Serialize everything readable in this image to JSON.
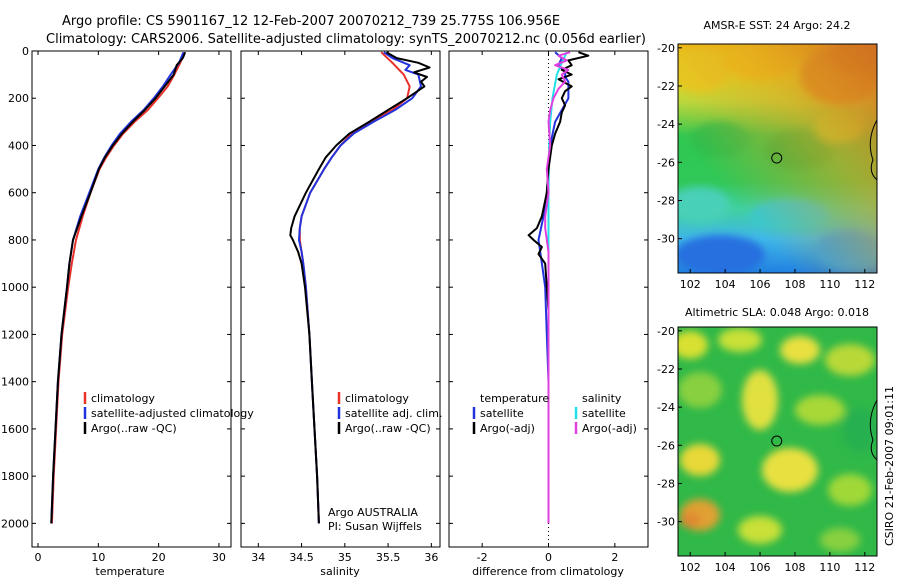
{
  "header": {
    "line1": "Argo profile: CS 5901167_12 12-Feb-2007 20070212_739 25.775S 106.956E",
    "line2": "Climatology: CARS2006. Satellite-adjusted climatology: synTS_20070212.nc (0.056d earlier)"
  },
  "credit": "CSIRO 21-Feb-2007 09:01:11",
  "colors": {
    "red": "#e8312b",
    "blue": "#2233dd",
    "black": "#000000",
    "cyan": "#22e0e8",
    "magenta": "#e040e0"
  },
  "chart_data": [
    {
      "type": "line",
      "xlabel": "temperature",
      "ylabel": "",
      "xlim": [
        -1,
        32
      ],
      "ylim": [
        0,
        2100
      ],
      "xticks": [
        "0",
        "10",
        "20",
        "30"
      ],
      "yticks": [
        "0",
        "200",
        "400",
        "600",
        "800",
        "1000",
        "1200",
        "1400",
        "1600",
        "1800",
        "2000"
      ],
      "legend": {
        "placement": "lower-right",
        "entries": [
          "climatology",
          "satellite-adjusted climatology",
          "Argo(..raw -QC)"
        ]
      },
      "series": [
        {
          "name": "climatology",
          "color": "red",
          "depth": [
            5,
            50,
            100,
            150,
            200,
            250,
            300,
            350,
            400,
            450,
            500,
            600,
            700,
            800,
            900,
            1000,
            1200,
            1400,
            1600,
            1800,
            2000
          ],
          "values": [
            24.3,
            23.6,
            22.6,
            21.5,
            19.9,
            18.2,
            16.0,
            14.1,
            12.6,
            11.3,
            10.2,
            8.7,
            7.4,
            6.3,
            5.6,
            5.0,
            4.0,
            3.4,
            3.0,
            2.6,
            2.3
          ]
        },
        {
          "name": "satellite-adjusted climatology",
          "color": "blue",
          "depth": [
            5,
            50,
            100,
            150,
            200,
            250,
            300,
            350,
            400,
            450,
            500,
            600,
            700,
            800,
            900,
            1000,
            1200,
            1400,
            1600,
            1800,
            2000
          ],
          "values": [
            24.1,
            23.4,
            22.0,
            20.7,
            19.2,
            17.5,
            15.4,
            13.6,
            12.2,
            11.0,
            10.0,
            8.5,
            7.0,
            5.8,
            5.2,
            4.8,
            3.9,
            3.3,
            2.9,
            2.5,
            2.2
          ]
        },
        {
          "name": "Argo(..raw -QC)",
          "color": "black",
          "depth": [
            5,
            30,
            60,
            100,
            150,
            200,
            250,
            300,
            350,
            400,
            450,
            500,
            600,
            700,
            800,
            850,
            900,
            1000,
            1200,
            1400,
            1600,
            1800,
            2000
          ],
          "values": [
            24.4,
            24.0,
            23.0,
            22.5,
            21.0,
            19.5,
            17.7,
            15.7,
            13.9,
            12.4,
            11.1,
            10.1,
            8.7,
            7.2,
            5.8,
            5.5,
            5.2,
            4.8,
            3.9,
            3.3,
            2.9,
            2.5,
            2.2
          ]
        }
      ]
    },
    {
      "type": "line",
      "xlabel": "salinity",
      "ylabel": "",
      "xlim": [
        33.8,
        36.1
      ],
      "ylim": [
        0,
        2100
      ],
      "xticks": [
        "34",
        "34.5",
        "35",
        "35.5",
        "36"
      ],
      "annotations": [
        "Argo AUSTRALIA",
        "PI: Susan Wijffels"
      ],
      "legend": {
        "placement": "lower-right",
        "entries": [
          "climatology",
          "satellite adj. clim.",
          "Argo(..raw -QC)"
        ]
      },
      "series": [
        {
          "name": "climatology",
          "color": "red",
          "depth": [
            5,
            50,
            100,
            150,
            200,
            250,
            300,
            350,
            400,
            450,
            500,
            600,
            700,
            750,
            800,
            850,
            900,
            1000,
            1200,
            1400,
            1600,
            1800,
            2000
          ],
          "values": [
            35.42,
            35.55,
            35.68,
            35.75,
            35.72,
            35.55,
            35.3,
            35.08,
            34.95,
            34.85,
            34.76,
            34.6,
            34.5,
            34.48,
            34.48,
            34.5,
            34.52,
            34.55,
            34.59,
            34.62,
            34.65,
            34.68,
            34.7
          ]
        },
        {
          "name": "satellite adj. clim.",
          "color": "blue",
          "depth": [
            5,
            30,
            60,
            80,
            100,
            150,
            200,
            250,
            300,
            350,
            400,
            450,
            500,
            600,
            700,
            750,
            800,
            850,
            900,
            1000,
            1200,
            1400,
            1600,
            1800,
            2000
          ],
          "values": [
            35.45,
            35.55,
            35.75,
            35.7,
            35.85,
            35.88,
            35.78,
            35.58,
            35.33,
            35.1,
            34.95,
            34.85,
            34.76,
            34.6,
            34.5,
            34.48,
            34.47,
            34.5,
            34.52,
            34.55,
            34.59,
            34.62,
            34.65,
            34.68,
            34.7
          ]
        },
        {
          "name": "Argo(..raw -QC)",
          "color": "black",
          "depth": [
            5,
            30,
            50,
            70,
            90,
            110,
            130,
            150,
            175,
            200,
            250,
            300,
            350,
            400,
            450,
            500,
            600,
            700,
            750,
            780,
            800,
            850,
            900,
            1000,
            1200,
            1400,
            1600,
            1800,
            2000
          ],
          "values": [
            35.48,
            35.6,
            35.85,
            35.98,
            35.8,
            35.95,
            35.88,
            35.92,
            35.82,
            35.72,
            35.5,
            35.28,
            35.05,
            34.9,
            34.78,
            34.7,
            34.55,
            34.42,
            34.38,
            34.37,
            34.4,
            34.46,
            34.5,
            34.54,
            34.59,
            34.62,
            34.65,
            34.68,
            34.7
          ]
        }
      ]
    },
    {
      "type": "line",
      "xlabel": "difference from climatology",
      "ylabel": "",
      "xlim": [
        -3,
        3
      ],
      "ylim": [
        0,
        2100
      ],
      "xticks": [
        "-2",
        "0",
        "2"
      ],
      "legend": {
        "placement": "lower-center",
        "entries": [
          "temperature",
          "salinity",
          "satellite",
          "satellite",
          "Argo(-adj)",
          "Argo(-adj)"
        ]
      },
      "series": [
        {
          "name": "satellite",
          "color": "blue",
          "depth": [
            5,
            30,
            60,
            90,
            110,
            130,
            150,
            200,
            250,
            300,
            400,
            500,
            600,
            700,
            800,
            900,
            1000,
            1200,
            1400,
            1600,
            1800,
            2000
          ],
          "values": [
            0.2,
            0.4,
            0.3,
            0.5,
            0.5,
            0.6,
            0.6,
            0.6,
            0.4,
            0.2,
            0.05,
            0.0,
            -0.05,
            -0.15,
            -0.3,
            -0.2,
            -0.1,
            -0.05,
            0.0,
            0.0,
            0.0,
            0.0
          ]
        },
        {
          "name": "satellite",
          "color": "cyan",
          "depth": [
            5,
            50,
            100,
            200,
            300,
            400,
            600,
            800,
            1000,
            1200,
            1400,
            1600,
            1800,
            2000
          ],
          "values": [
            0.55,
            0.4,
            0.25,
            0.12,
            0.05,
            0.02,
            0.0,
            0.0,
            0.0,
            0.0,
            0.0,
            0.0,
            0.0,
            0.0
          ]
        },
        {
          "name": "Argo(-adj)",
          "color": "black",
          "depth": [
            5,
            20,
            40,
            60,
            80,
            100,
            120,
            150,
            170,
            200,
            230,
            260,
            300,
            350,
            400,
            500,
            600,
            700,
            750,
            780,
            800,
            830,
            860,
            900,
            1000,
            1100,
            1200,
            1400,
            1600,
            1800,
            2000
          ],
          "values": [
            0.9,
            1.2,
            0.6,
            0.7,
            0.4,
            0.7,
            0.3,
            0.7,
            0.5,
            0.4,
            0.5,
            0.4,
            0.35,
            0.2,
            0.1,
            0.0,
            -0.05,
            -0.2,
            -0.35,
            -0.6,
            -0.45,
            -0.2,
            -0.3,
            -0.1,
            -0.05,
            0.0,
            0.0,
            0.0,
            0.0,
            0.0,
            0.0
          ]
        },
        {
          "name": "Argo(-adj)",
          "color": "magenta",
          "depth": [
            5,
            20,
            40,
            60,
            80,
            100,
            130,
            160,
            200,
            250,
            300,
            400,
            500,
            600,
            700,
            750,
            800,
            850,
            900,
            1000,
            1200,
            1400,
            1600,
            1800,
            2000
          ],
          "values": [
            0.65,
            0.3,
            0.55,
            0.2,
            0.6,
            0.4,
            0.5,
            0.3,
            0.15,
            0.05,
            0.0,
            0.05,
            -0.05,
            0.0,
            -0.1,
            -0.1,
            -0.05,
            0.0,
            0.0,
            0.0,
            0.0,
            0.0,
            0.0,
            0.0,
            0.0
          ]
        }
      ]
    },
    {
      "type": "heatmap",
      "title": "AMSR-E SST: 24  Argo: 24.2",
      "xticks": [
        "102",
        "104",
        "106",
        "108",
        "110",
        "112"
      ],
      "yticks": [
        "-20",
        "-22",
        "-24",
        "-26",
        "-28",
        "-30"
      ],
      "xlim": [
        101.3,
        112.7
      ],
      "ylim": [
        -31.8,
        -19.8
      ],
      "marker": {
        "lon": 106.956,
        "lat": -25.775
      }
    },
    {
      "type": "heatmap",
      "title": "Altimetric SLA: 0.048  Argo: 0.018",
      "xticks": [
        "102",
        "104",
        "106",
        "108",
        "110",
        "112"
      ],
      "yticks": [
        "-20",
        "-22",
        "-24",
        "-26",
        "-28",
        "-30"
      ],
      "xlim": [
        101.3,
        112.7
      ],
      "ylim": [
        -31.8,
        -19.8
      ],
      "marker": {
        "lon": 106.956,
        "lat": -25.775
      }
    }
  ]
}
